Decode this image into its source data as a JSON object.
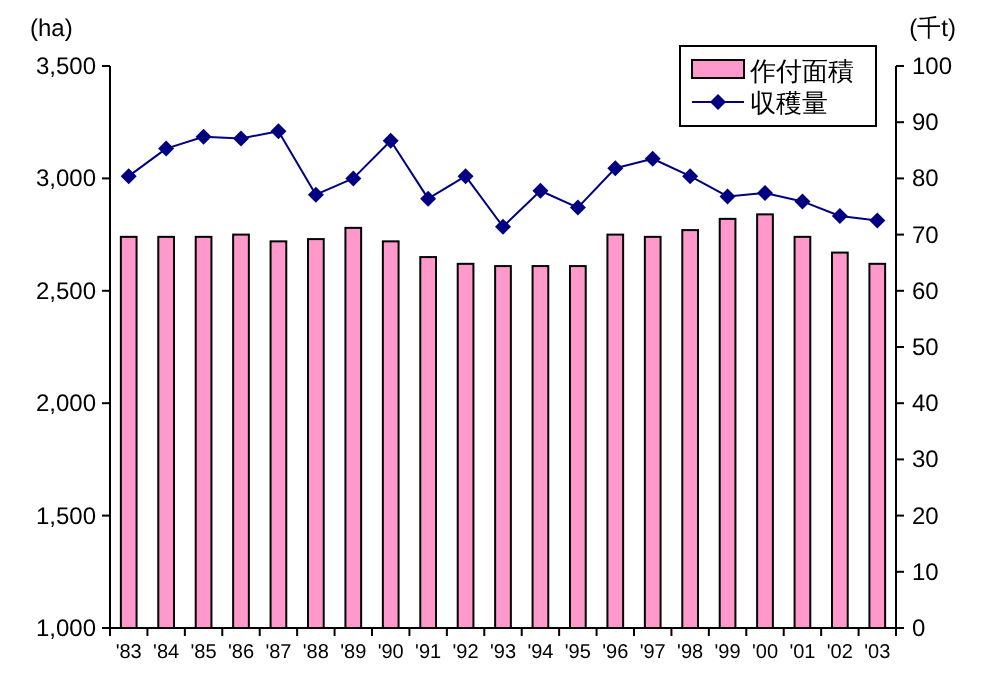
{
  "chart_data": {
    "type": "bar",
    "ylabel": "(ha)",
    "y2label": "(千t)",
    "categories": [
      "'83",
      "'84",
      "'85",
      "'86",
      "'87",
      "'88",
      "'89",
      "'90",
      "'91",
      "'92",
      "'93",
      "'94",
      "'95",
      "'96",
      "'97",
      "'98",
      "'99",
      "'00",
      "'01",
      "'02",
      "'03"
    ],
    "series": [
      {
        "name": "作付面積",
        "color": "#ff99cc",
        "values": [
          2740,
          2740,
          2740,
          2750,
          2720,
          2730,
          2780,
          2720,
          2650,
          2620,
          2610,
          2610,
          2610,
          2750,
          2740,
          2770,
          2820,
          2840,
          2740,
          2670,
          2620
        ]
      },
      {
        "name": "収穫量",
        "type": "line",
        "axis": "y2",
        "color": "#000080",
        "marker": "diamond",
        "values": [
          80.4,
          85.3,
          87.4,
          87.1,
          88.4,
          77.1,
          80.0,
          86.7,
          76.4,
          80.4,
          71.4,
          77.8,
          74.8,
          81.8,
          83.5,
          80.4,
          76.8,
          77.4,
          75.9,
          73.3,
          72.5
        ]
      }
    ],
    "ylim": [
      1000,
      3500
    ],
    "yticks": [
      {
        "value": 1000,
        "label": "1,000"
      },
      {
        "value": 1500,
        "label": "1,500"
      },
      {
        "value": 2000,
        "label": "2,000"
      },
      {
        "value": 2500,
        "label": "2,500"
      },
      {
        "value": 3000,
        "label": "3,000"
      },
      {
        "value": 3500,
        "label": "3,500"
      }
    ],
    "y2lim": [
      0,
      100
    ],
    "y2ticks": [
      0,
      10,
      20,
      30,
      40,
      50,
      60,
      70,
      80,
      90,
      100
    ],
    "grid": false,
    "legend": "top right"
  }
}
